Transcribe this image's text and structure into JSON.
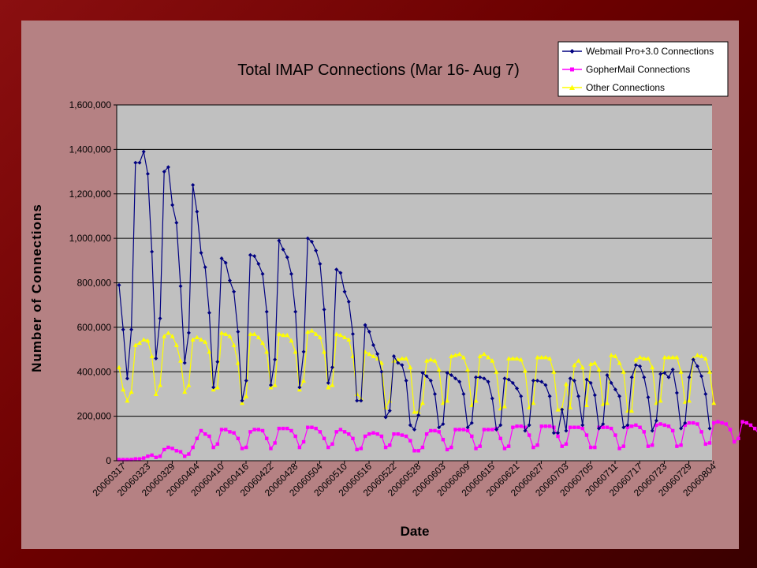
{
  "chart_data": {
    "type": "line",
    "title": "Total IMAP Connections (Mar 16- Aug 7)",
    "xlabel": "Date",
    "ylabel": "Number of Connections",
    "ylim": [
      0,
      1600000
    ],
    "yticks": [
      0,
      200000,
      400000,
      600000,
      800000,
      1000000,
      1200000,
      1400000,
      1600000
    ],
    "ytick_labels": [
      "0",
      "200,000",
      "400,000",
      "600,000",
      "800,000",
      "1,000,000",
      "1,200,000",
      "1,400,000",
      "1,600,000"
    ],
    "x_tick_labels": [
      "20060317",
      "20060323",
      "20060329",
      "20060404",
      "20060410",
      "20060416",
      "20060422",
      "20060428",
      "20060504",
      "20060510",
      "20060516",
      "20060522",
      "20060528",
      "20060603",
      "20060609",
      "20060615",
      "20060621",
      "20060627",
      "20060703",
      "20060705",
      "20060711",
      "20060717",
      "20060723",
      "20060729",
      "20060804"
    ],
    "grid": "horizontal",
    "legend_position": "top-right",
    "background": "#c0c0c0",
    "series": [
      {
        "name": "Webmail Pro+3.0 Connections",
        "color": "#000080",
        "marker": "diamond",
        "values": [
          790000,
          590000,
          370000,
          590000,
          1340000,
          1340000,
          1390000,
          1290000,
          940000,
          460000,
          640000,
          1300000,
          1320000,
          1150000,
          1070000,
          785000,
          440000,
          575000,
          1240000,
          1120000,
          935000,
          870000,
          665000,
          330000,
          445000,
          910000,
          890000,
          810000,
          760000,
          580000,
          270000,
          360000,
          925000,
          920000,
          885000,
          840000,
          670000,
          340000,
          455000,
          990000,
          950000,
          915000,
          840000,
          670000,
          330000,
          490000,
          1000000,
          985000,
          945000,
          885000,
          680000,
          350000,
          420000,
          860000,
          845000,
          760000,
          715000,
          570000,
          270000,
          270000,
          610000,
          580000,
          520000,
          480000,
          400000,
          195000,
          225000,
          470000,
          440000,
          430000,
          360000,
          160000,
          140000,
          205000,
          395000,
          380000,
          360000,
          300000,
          150000,
          165000,
          395000,
          385000,
          370000,
          355000,
          300000,
          150000,
          170000,
          375000,
          375000,
          370000,
          355000,
          280000,
          140000,
          160000,
          370000,
          365000,
          350000,
          325000,
          290000,
          135000,
          160000,
          360000,
          360000,
          355000,
          340000,
          290000,
          125000,
          125000,
          230000,
          135000,
          370000,
          360000,
          290000,
          160000,
          365000,
          350000,
          295000,
          145000,
          165000,
          385000,
          350000,
          320000,
          290000,
          150000,
          160000,
          375000,
          430000,
          425000,
          375000,
          285000,
          135000,
          180000,
          390000,
          395000,
          375000,
          410000,
          305000,
          145000,
          170000,
          375000,
          455000,
          425000,
          380000,
          300000,
          145000
        ],
        "endpoints": [
          "20060316",
          "20060807"
        ]
      },
      {
        "name": "GopherMail Connections",
        "color": "#ff00ff",
        "marker": "square",
        "values": [
          5000,
          5000,
          5000,
          5000,
          8000,
          8000,
          12000,
          20000,
          25000,
          15000,
          20000,
          50000,
          60000,
          55000,
          45000,
          40000,
          20000,
          30000,
          60000,
          100000,
          135000,
          120000,
          110000,
          60000,
          75000,
          140000,
          140000,
          130000,
          125000,
          100000,
          55000,
          60000,
          130000,
          140000,
          140000,
          135000,
          100000,
          55000,
          80000,
          145000,
          145000,
          145000,
          135000,
          110000,
          60000,
          85000,
          150000,
          150000,
          145000,
          130000,
          100000,
          60000,
          75000,
          130000,
          140000,
          130000,
          120000,
          100000,
          50000,
          55000,
          110000,
          120000,
          125000,
          120000,
          110000,
          60000,
          70000,
          120000,
          120000,
          115000,
          110000,
          90000,
          45000,
          45000,
          60000,
          120000,
          135000,
          135000,
          130000,
          95000,
          50000,
          60000,
          140000,
          140000,
          140000,
          135000,
          110000,
          55000,
          65000,
          140000,
          140000,
          140000,
          145000,
          100000,
          55000,
          65000,
          150000,
          155000,
          155000,
          150000,
          115000,
          60000,
          70000,
          155000,
          155000,
          155000,
          150000,
          110000,
          65000,
          75000,
          150000,
          150000,
          150000,
          145000,
          115000,
          60000,
          60000,
          150000,
          150000,
          150000,
          145000,
          115000,
          55000,
          65000,
          150000,
          155000,
          160000,
          150000,
          130000,
          65000,
          70000,
          160000,
          165000,
          160000,
          155000,
          135000,
          65000,
          70000,
          160000,
          170000,
          170000,
          165000,
          130000,
          75000,
          80000,
          170000,
          175000,
          170000,
          165000,
          140000,
          85000,
          100000,
          175000,
          170000,
          160000,
          145000,
          120000,
          75000,
          80000,
          180000,
          150000,
          145000,
          145000,
          140000,
          70000
        ],
        "endpoints": [
          "20060316",
          "20060807"
        ]
      },
      {
        "name": "Other Connections",
        "color": "#ffff00",
        "marker": "triangle",
        "values": [
          420000,
          320000,
          270000,
          310000,
          520000,
          530000,
          545000,
          540000,
          470000,
          300000,
          340000,
          560000,
          575000,
          560000,
          520000,
          450000,
          310000,
          340000,
          545000,
          555000,
          545000,
          535000,
          490000,
          320000,
          330000,
          575000,
          570000,
          560000,
          520000,
          440000,
          260000,
          290000,
          570000,
          570000,
          555000,
          530000,
          490000,
          330000,
          340000,
          570000,
          565000,
          565000,
          540000,
          490000,
          320000,
          360000,
          580000,
          585000,
          570000,
          555000,
          490000,
          330000,
          340000,
          570000,
          565000,
          555000,
          545000,
          470000,
          300000,
          280000,
          490000,
          480000,
          470000,
          460000,
          440000,
          240000,
          270000,
          450000,
          455000,
          460000,
          460000,
          420000,
          220000,
          220000,
          260000,
          450000,
          455000,
          450000,
          410000,
          260000,
          270000,
          470000,
          475000,
          480000,
          465000,
          410000,
          250000,
          270000,
          470000,
          480000,
          465000,
          450000,
          400000,
          235000,
          245000,
          460000,
          460000,
          460000,
          455000,
          405000,
          240000,
          260000,
          465000,
          465000,
          465000,
          460000,
          400000,
          230000,
          235000,
          345000,
          240000,
          430000,
          450000,
          420000,
          250000,
          435000,
          440000,
          410000,
          255000,
          260000,
          475000,
          470000,
          440000,
          400000,
          225000,
          225000,
          455000,
          465000,
          460000,
          460000,
          420000,
          260000,
          270000,
          465000,
          465000,
          465000,
          465000,
          400000,
          265000,
          270000,
          460000,
          475000,
          470000,
          460000,
          400000,
          260000
        ]
      }
    ]
  }
}
